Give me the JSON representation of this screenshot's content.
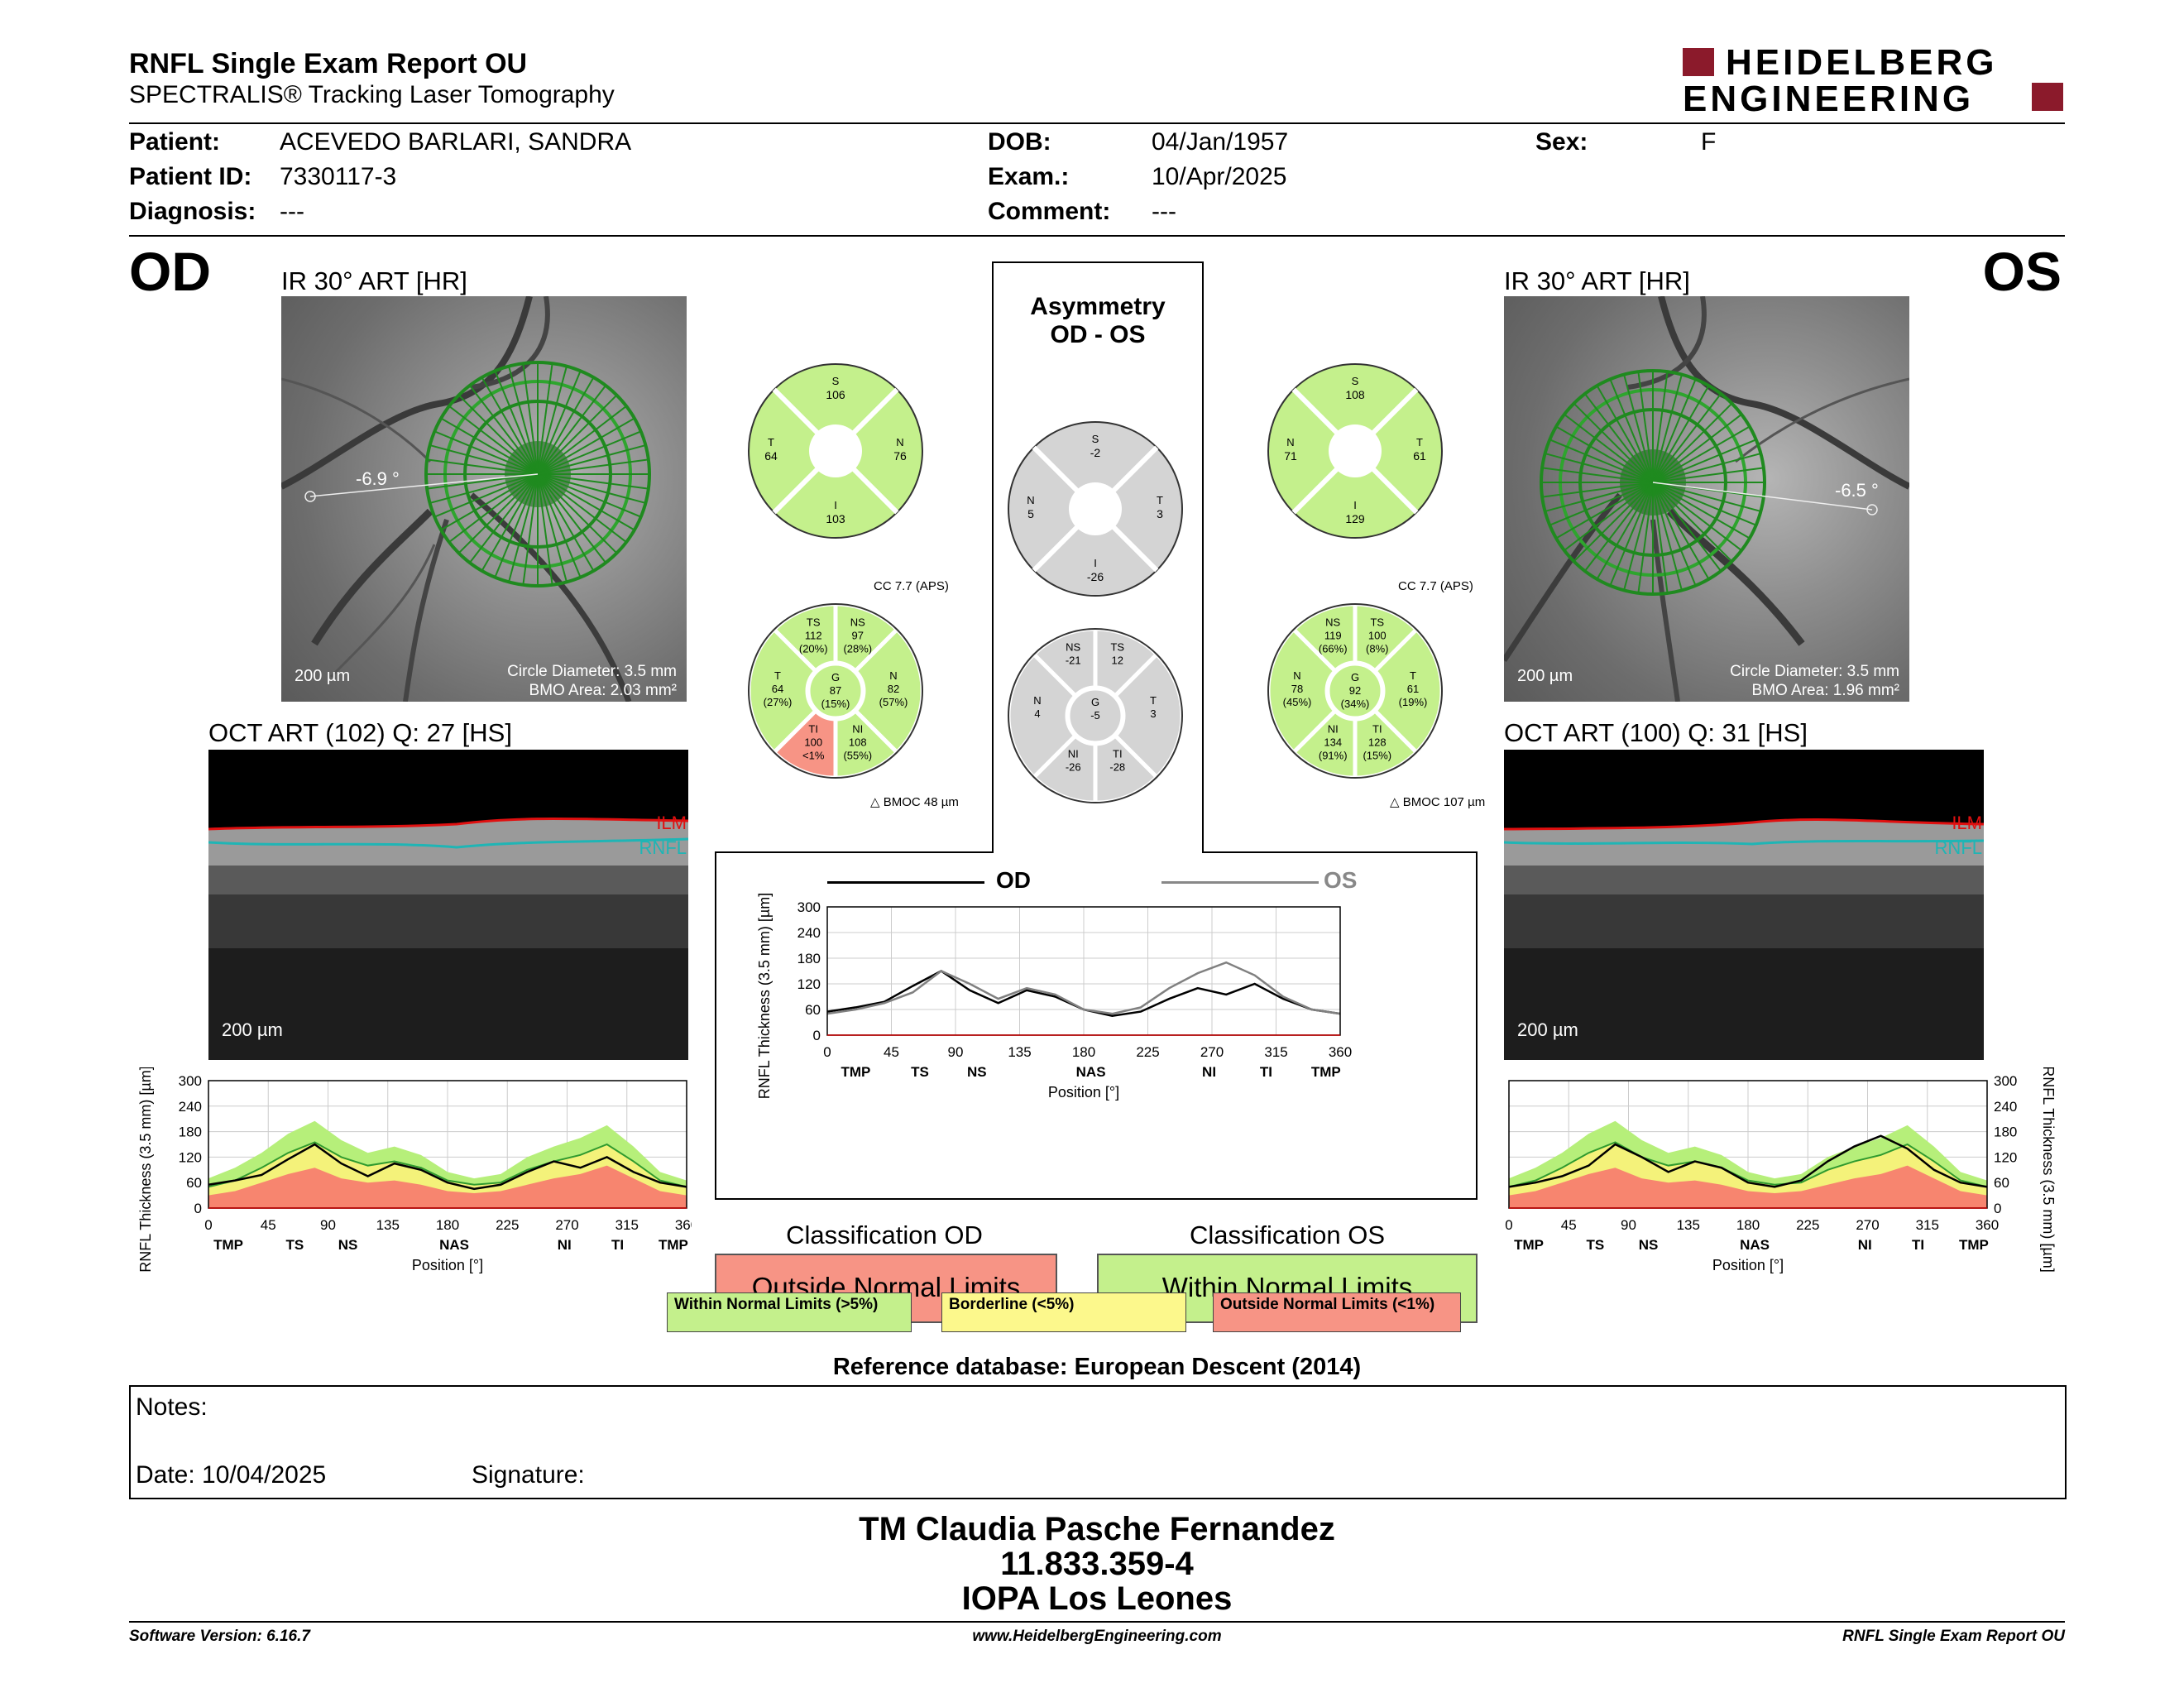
{
  "header": {
    "title": "RNFL Single Exam Report OU",
    "subtitle": "SPECTRALIS® Tracking Laser Tomography",
    "brand_line1": "HEIDELBERG",
    "brand_line2": "ENGINEERING",
    "brand_color": "#8b1a2b"
  },
  "patient": {
    "patient_label": "Patient:",
    "patient_value": "ACEVEDO BARLARI, SANDRA",
    "id_label": "Patient ID:",
    "id_value": "7330117-3",
    "diag_label": "Diagnosis:",
    "diag_value": "---",
    "dob_label": "DOB:",
    "dob_value": "04/Jan/1957",
    "exam_label": "Exam.:",
    "exam_value": "10/Apr/2025",
    "comment_label": "Comment:",
    "comment_value": "---",
    "sex_label": "Sex:",
    "sex_value": "F"
  },
  "od": {
    "eye": "OD",
    "ir_caption": "IR 30° ART [HR]",
    "angle": "-6.9 °",
    "scale": "200 µm",
    "circle_diameter": "Circle Diameter: 3.5 mm",
    "bmo_area": "BMO Area: 2.03 mm²",
    "oct_caption": "OCT ART (102) Q: 27 [HS]",
    "ilm": "ILM",
    "rnfl": "RNFL",
    "oct_scale": "200 µm",
    "sectors4": {
      "S": "106",
      "N": "76",
      "I": "103",
      "T": "64"
    },
    "cc": "CC 7.7 (APS)",
    "bmoc": "BMOC 48 µm",
    "sectors6": {
      "TS": [
        "TS",
        "112",
        "(20%)"
      ],
      "NS": [
        "NS",
        "97",
        "(28%)"
      ],
      "N": [
        "N",
        "82",
        "(57%)"
      ],
      "NI": [
        "NI",
        "108",
        "(55%)"
      ],
      "TI": [
        "TI",
        "100",
        "<1%"
      ],
      "T": [
        "T",
        "64",
        "(27%)"
      ],
      "G": [
        "G",
        "87",
        "(15%)"
      ]
    }
  },
  "os": {
    "eye": "OS",
    "ir_caption": "IR 30° ART [HR]",
    "angle": "-6.5 °",
    "scale": "200 µm",
    "circle_diameter": "Circle Diameter: 3.5 mm",
    "bmo_area": "BMO Area: 1.96 mm²",
    "oct_caption": "OCT ART (100) Q: 31 [HS]",
    "ilm": "ILM",
    "rnfl": "RNFL",
    "oct_scale": "200 µm",
    "sectors4": {
      "S": "108",
      "N": "71",
      "I": "129",
      "T": "61"
    },
    "cc": "CC 7.7 (APS)",
    "bmoc": "BMOC 107 µm",
    "sectors6": {
      "NS": [
        "NS",
        "119",
        "(66%)"
      ],
      "TS": [
        "TS",
        "100",
        "(8%)"
      ],
      "T": [
        "T",
        "61",
        "(19%)"
      ],
      "TI": [
        "TI",
        "128",
        "(15%)"
      ],
      "NI": [
        "NI",
        "134",
        "(91%)"
      ],
      "N": [
        "N",
        "78",
        "(45%)"
      ],
      "G": [
        "G",
        "92",
        "(34%)"
      ]
    }
  },
  "asym": {
    "title1": "Asymmetry",
    "title2": "OD - OS",
    "sectors4": {
      "S": "-2",
      "T": "3",
      "I": "-26",
      "N": "5"
    },
    "sectors6": {
      "NS": [
        "NS",
        "-21"
      ],
      "TS": [
        "TS",
        "12"
      ],
      "T": [
        "T",
        "3"
      ],
      "TI": [
        "TI",
        "-28"
      ],
      "NI": [
        "NI",
        "-26"
      ],
      "N": [
        "N",
        "4"
      ],
      "G": [
        "G",
        "-5"
      ]
    }
  },
  "colors": {
    "normal": "#c4f08c",
    "borderline": "#fcf88c",
    "outside": "#f79485",
    "asym": "#d4d4d4",
    "green_ring": "#1f8a1f"
  },
  "chart_data": [
    {
      "type": "line",
      "id": "od_profile",
      "ylabel": "RNFL Thickness (3.5 mm) [µm]",
      "xlabel": "Position [°]",
      "xlim": [
        0,
        360
      ],
      "ylim": [
        0,
        300
      ],
      "yticks": [
        0,
        60,
        120,
        180,
        240,
        300
      ],
      "xticks": [
        0,
        45,
        90,
        135,
        180,
        225,
        270,
        315,
        360
      ],
      "sector_labels": [
        "TMP",
        "TS",
        "NS",
        "NAS",
        "NI",
        "TI",
        "TMP"
      ],
      "sector_positions": [
        15,
        65,
        105,
        185,
        268,
        308,
        350
      ],
      "x": [
        0,
        20,
        40,
        60,
        80,
        100,
        120,
        140,
        160,
        180,
        200,
        220,
        240,
        260,
        280,
        300,
        320,
        340,
        360
      ],
      "series": [
        {
          "values": [
            55,
            65,
            78,
            115,
            150,
            105,
            75,
            105,
            90,
            60,
            45,
            55,
            85,
            110,
            95,
            120,
            85,
            60,
            50
          ]
        }
      ],
      "norm_outer": [
        70,
        95,
        130,
        175,
        205,
        160,
        130,
        145,
        125,
        85,
        70,
        80,
        120,
        145,
        165,
        195,
        145,
        85,
        65
      ],
      "norm_mid": [
        50,
        65,
        95,
        130,
        155,
        120,
        100,
        110,
        95,
        65,
        55,
        60,
        90,
        110,
        125,
        150,
        110,
        65,
        50
      ],
      "norm_low": [
        30,
        40,
        60,
        80,
        95,
        70,
        60,
        65,
        55,
        40,
        35,
        40,
        55,
        70,
        80,
        100,
        70,
        40,
        30
      ]
    },
    {
      "type": "line",
      "id": "os_profile",
      "ylabel": "RNFL Thickness (3.5 mm) [µm]",
      "xlabel": "Position [°]",
      "xlim": [
        0,
        360
      ],
      "ylim": [
        0,
        300
      ],
      "yticks": [
        0,
        60,
        120,
        180,
        240,
        300
      ],
      "xticks": [
        0,
        45,
        90,
        135,
        180,
        225,
        270,
        315,
        360
      ],
      "sector_labels": [
        "TMP",
        "TS",
        "NS",
        "NAS",
        "NI",
        "TI",
        "TMP"
      ],
      "sector_positions": [
        15,
        65,
        105,
        185,
        268,
        308,
        350
      ],
      "x": [
        0,
        20,
        40,
        60,
        80,
        100,
        120,
        140,
        160,
        180,
        200,
        220,
        240,
        260,
        280,
        300,
        320,
        340,
        360
      ],
      "series": [
        {
          "values": [
            50,
            60,
            75,
            100,
            150,
            120,
            85,
            110,
            95,
            60,
            50,
            65,
            110,
            145,
            170,
            140,
            90,
            60,
            50
          ]
        }
      ],
      "norm_outer": [
        70,
        95,
        130,
        175,
        205,
        160,
        130,
        145,
        125,
        85,
        70,
        80,
        120,
        145,
        165,
        195,
        145,
        85,
        65
      ],
      "norm_mid": [
        50,
        65,
        95,
        130,
        155,
        120,
        100,
        110,
        95,
        65,
        55,
        60,
        90,
        110,
        125,
        150,
        110,
        65,
        50
      ],
      "norm_low": [
        30,
        40,
        60,
        80,
        95,
        70,
        60,
        65,
        55,
        40,
        35,
        40,
        55,
        70,
        80,
        100,
        70,
        40,
        30
      ]
    },
    {
      "type": "line",
      "id": "asym_profile",
      "ylabel": "RNFL Thickness (3.5 mm) [µm]",
      "xlabel": "Position [°]",
      "xlim": [
        0,
        360
      ],
      "ylim": [
        0,
        300
      ],
      "yticks": [
        0,
        60,
        120,
        180,
        240,
        300
      ],
      "xticks": [
        0,
        45,
        90,
        135,
        180,
        225,
        270,
        315,
        360
      ],
      "sector_labels": [
        "TMP",
        "TS",
        "NS",
        "NAS",
        "NI",
        "TI",
        "TMP"
      ],
      "sector_positions": [
        20,
        65,
        105,
        185,
        268,
        308,
        350
      ],
      "x": [
        0,
        20,
        40,
        60,
        80,
        100,
        120,
        140,
        160,
        180,
        200,
        220,
        240,
        260,
        280,
        300,
        320,
        340,
        360
      ],
      "series": [
        {
          "name": "OD",
          "color": "#000000",
          "values": [
            55,
            65,
            78,
            115,
            150,
            105,
            75,
            105,
            90,
            60,
            45,
            55,
            85,
            110,
            95,
            120,
            85,
            60,
            50
          ]
        },
        {
          "name": "OS",
          "color": "#808080",
          "values": [
            50,
            60,
            75,
            100,
            150,
            120,
            85,
            110,
            95,
            60,
            50,
            65,
            110,
            145,
            170,
            140,
            90,
            60,
            50
          ]
        }
      ]
    }
  ],
  "classification": {
    "od_title": "Classification OD",
    "od_value": "Outside Normal Limits",
    "os_title": "Classification OS",
    "os_value": "Within Normal Limits",
    "legend_normal": "Within Normal Limits (>5%)",
    "legend_border": "Borderline (<5%)",
    "legend_outside": "Outside Normal Limits (<1%)"
  },
  "reference": "Reference database: European Descent (2014)",
  "notes": {
    "notes_label": "Notes:",
    "date_label": "Date: 10/04/2025",
    "signature_label": "Signature:"
  },
  "signature_block": {
    "line1": "TM Claudia Pasche Fernandez",
    "line2": "11.833.359-4",
    "line3": "IOPA Los Leones"
  },
  "footer": {
    "left": "Software Version: 6.16.7",
    "center": "www.HeidelbergEngineering.com",
    "right": "RNFL Single Exam Report OU"
  }
}
